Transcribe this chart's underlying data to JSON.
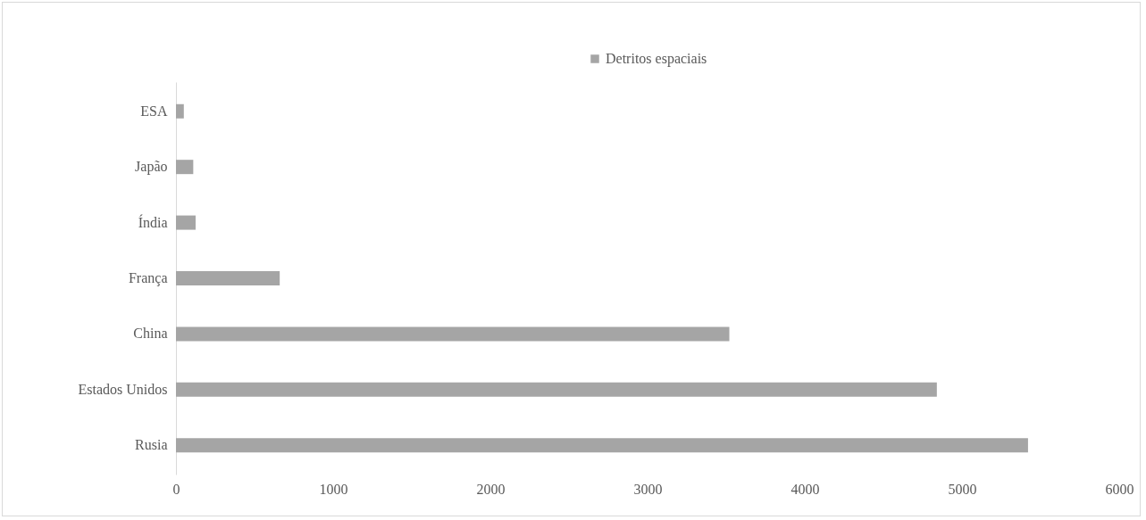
{
  "chart_data": {
    "type": "bar",
    "orientation": "horizontal",
    "categories": [
      "ESA",
      "Japão",
      "Índia",
      "França",
      "China",
      "Estados Unidos",
      "Rusia"
    ],
    "series": [
      {
        "name": "Detritos espaciais",
        "color": "#a5a5a5",
        "values": [
          50,
          110,
          125,
          660,
          3520,
          4840,
          5420
        ]
      }
    ],
    "xlim": [
      0,
      6000
    ],
    "xticks": [
      0,
      1000,
      2000,
      3000,
      4000,
      5000,
      6000
    ],
    "grid": false,
    "legend": "top"
  }
}
